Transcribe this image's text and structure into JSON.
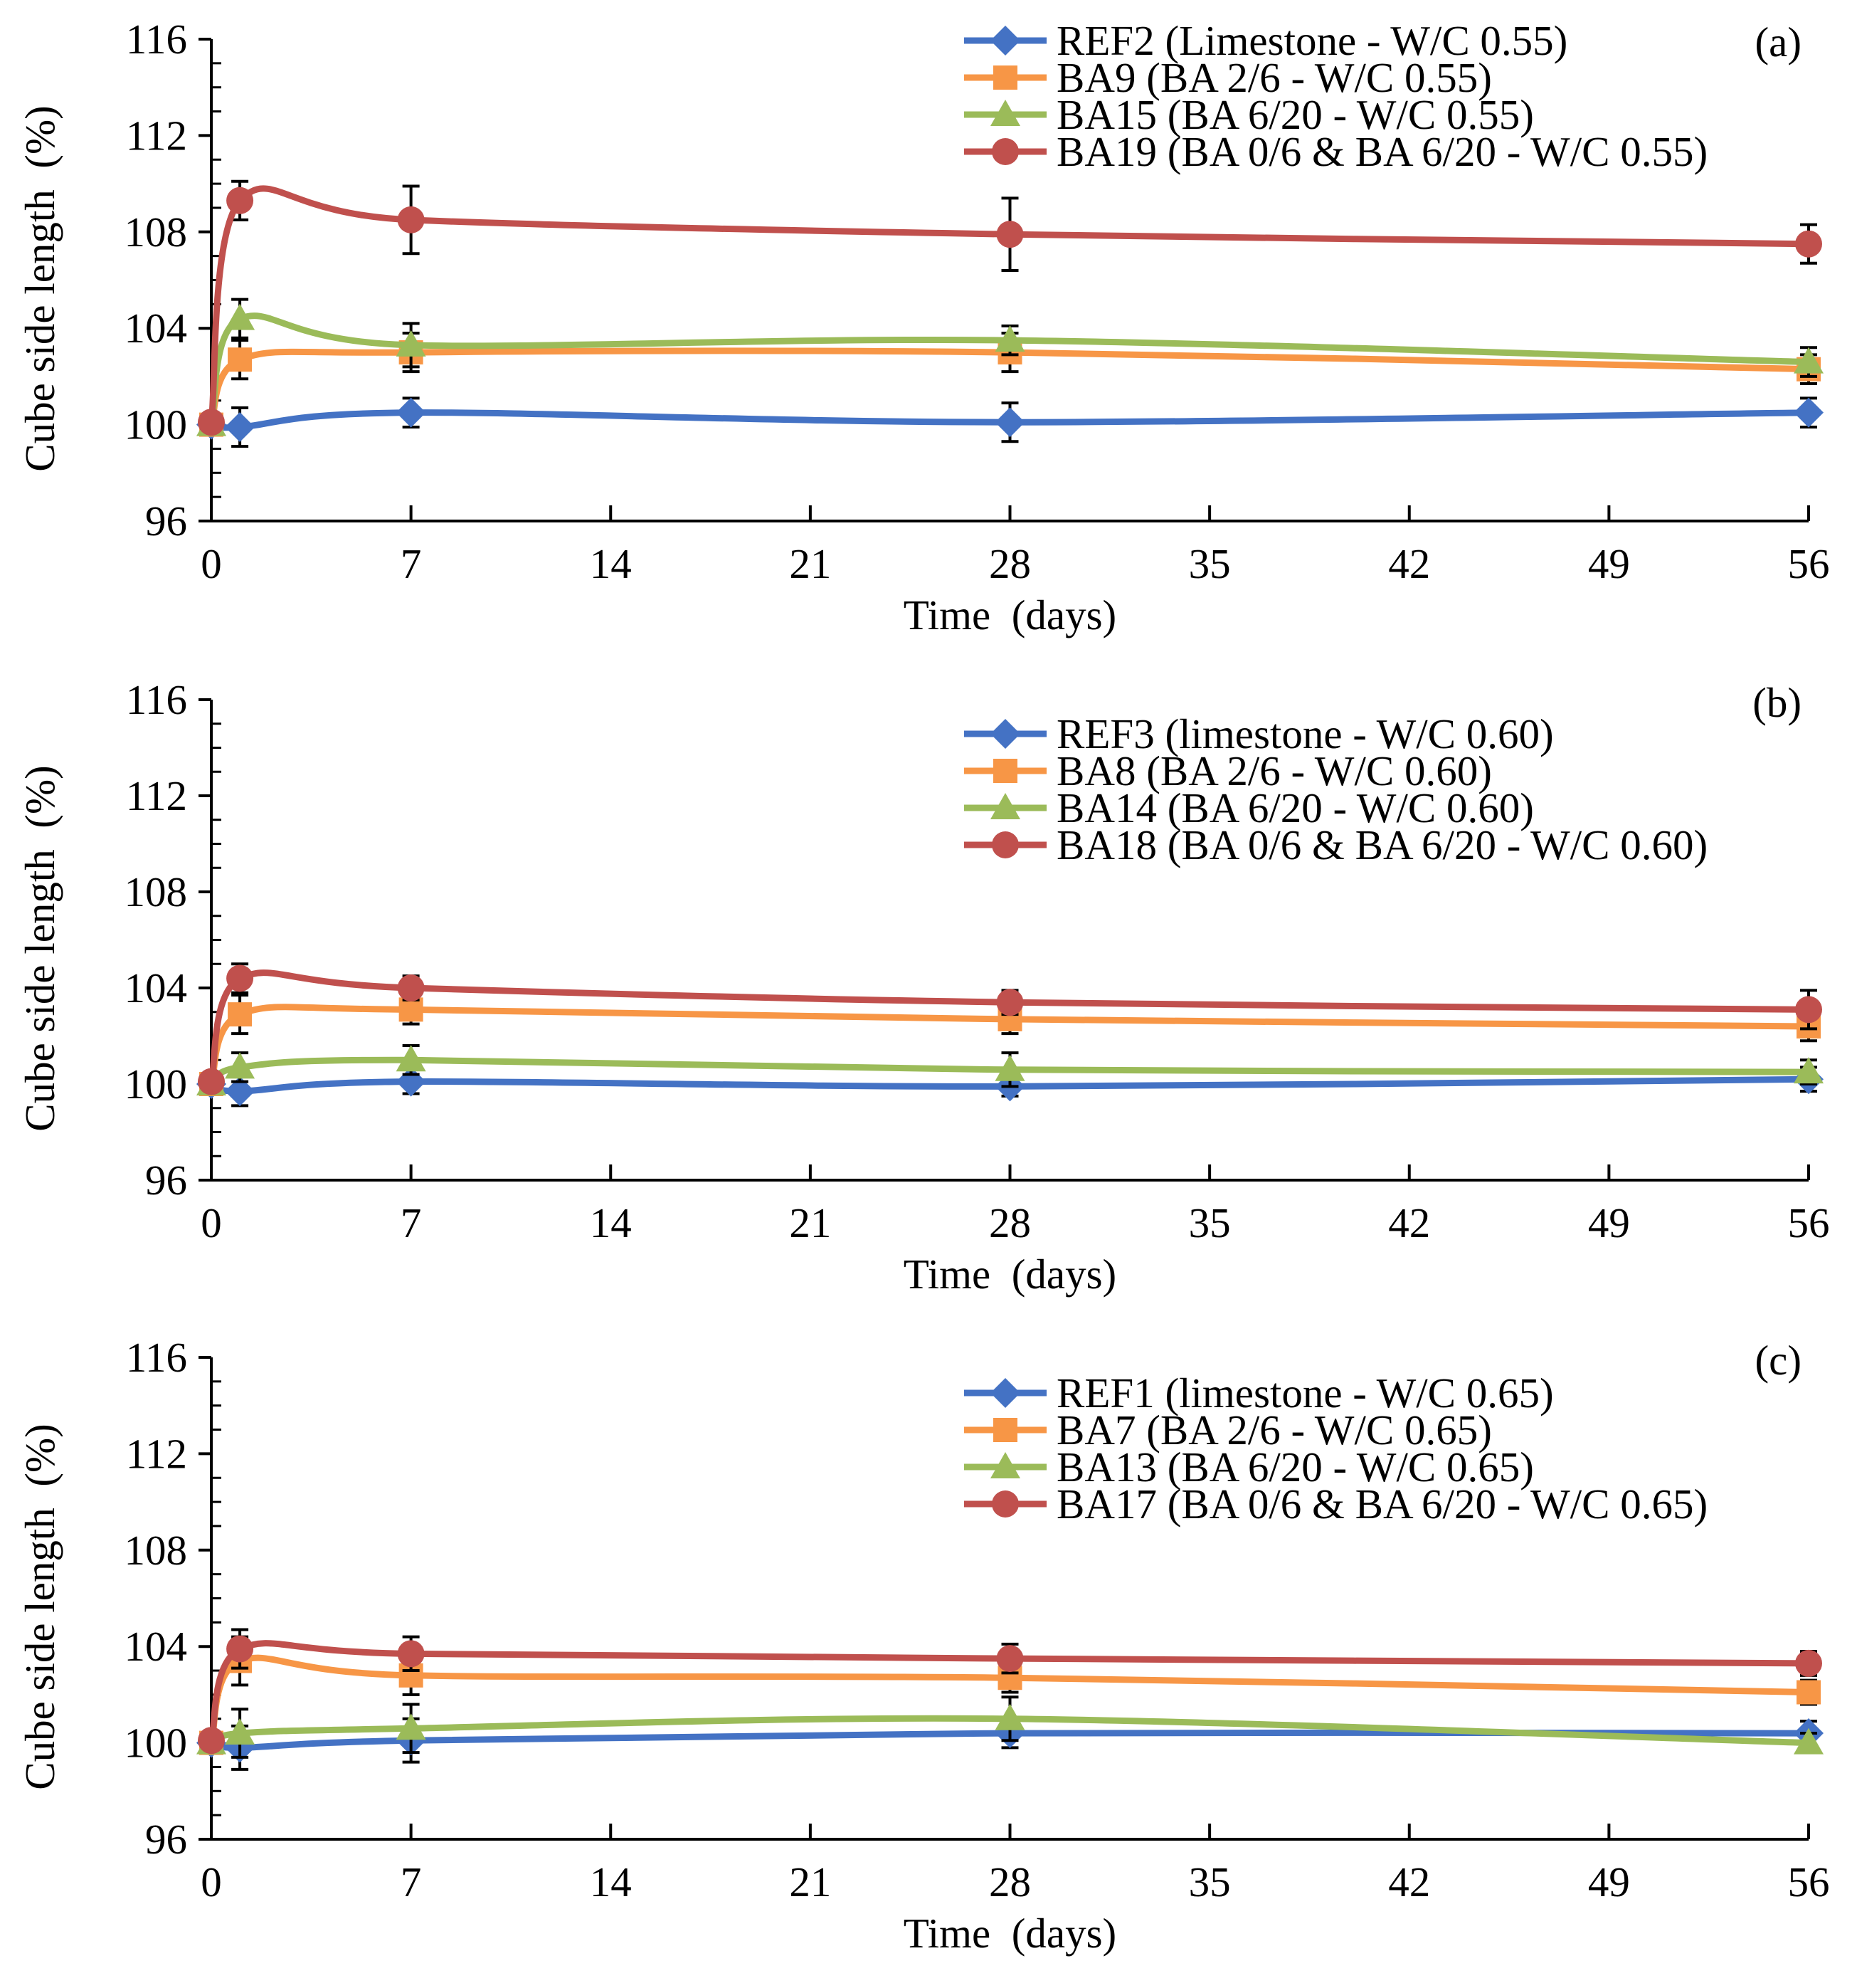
{
  "chart_data": [
    {
      "type": "line",
      "panel_label": "(a)",
      "xlabel": "Time  (days)",
      "ylabel": "Cube side length  (%)",
      "xlim": [
        0,
        56
      ],
      "ylim": [
        96,
        116
      ],
      "xticks": [
        "0",
        "7",
        "14",
        "21",
        "28",
        "35",
        "42",
        "49",
        "56"
      ],
      "yticks": [
        "96",
        "100",
        "104",
        "108",
        "112",
        "116"
      ],
      "legend_position": "top-right",
      "series": [
        {
          "name": "REF2 (Limestone - W/C 0.55)",
          "color": "#4472C4",
          "marker": "diamond",
          "x": [
            0,
            1,
            7,
            28,
            56
          ],
          "y": [
            100.0,
            99.9,
            100.5,
            100.1,
            100.5
          ],
          "err": [
            0,
            0.8,
            0.6,
            0.8,
            0.6
          ]
        },
        {
          "name": "BA9 (BA 2/6 - W/C 0.55)",
          "color": "#F79646",
          "marker": "square",
          "x": [
            0,
            1,
            7,
            28,
            56
          ],
          "y": [
            100.0,
            102.7,
            103.0,
            103.0,
            102.3
          ],
          "err": [
            0,
            0.8,
            0.8,
            0.8,
            0.6
          ]
        },
        {
          "name": "BA15 (BA 6/20 - W/C 0.55)",
          "color": "#9BBB59",
          "marker": "triangle",
          "x": [
            0,
            1,
            7,
            28,
            56
          ],
          "y": [
            100.0,
            104.4,
            103.3,
            103.5,
            102.6
          ],
          "err": [
            0,
            0.8,
            0.9,
            0.6,
            0.6
          ]
        },
        {
          "name": "BA19 (BA 0/6 & BA 6/20 - W/C 0.55)",
          "color": "#C0504D",
          "marker": "circle",
          "x": [
            0,
            1,
            7,
            28,
            56
          ],
          "y": [
            100.1,
            109.3,
            108.5,
            107.9,
            107.5
          ],
          "err": [
            0,
            0.8,
            1.4,
            1.5,
            0.8
          ]
        }
      ]
    },
    {
      "type": "line",
      "panel_label": "(b)",
      "xlabel": "Time  (days)",
      "ylabel": "Cube side length  (%)",
      "xlim": [
        0,
        56
      ],
      "ylim": [
        96,
        116
      ],
      "xticks": [
        "0",
        "7",
        "14",
        "21",
        "28",
        "35",
        "42",
        "49",
        "56"
      ],
      "yticks": [
        "96",
        "100",
        "104",
        "108",
        "112",
        "116"
      ],
      "legend_position": "top-right",
      "series": [
        {
          "name": "REF3 (limestone - W/C 0.60)",
          "color": "#4472C4",
          "marker": "diamond",
          "x": [
            0,
            1,
            7,
            28,
            56
          ],
          "y": [
            100.0,
            99.7,
            100.1,
            99.9,
            100.2
          ],
          "err": [
            0,
            0.6,
            0.5,
            0.4,
            0.5
          ]
        },
        {
          "name": "BA8 (BA 2/6 - W/C 0.60)",
          "color": "#F79646",
          "marker": "square",
          "x": [
            0,
            1,
            7,
            28,
            56
          ],
          "y": [
            100.0,
            102.9,
            103.1,
            102.7,
            102.4
          ],
          "err": [
            0,
            0.8,
            0.6,
            0.6,
            0.6
          ]
        },
        {
          "name": "BA14 (BA 6/20 - W/C 0.60)",
          "color": "#9BBB59",
          "marker": "triangle",
          "x": [
            0,
            1,
            7,
            28,
            56
          ],
          "y": [
            100.0,
            100.7,
            101.0,
            100.6,
            100.5
          ],
          "err": [
            0,
            0.6,
            0.6,
            0.7,
            0.5
          ]
        },
        {
          "name": "BA18 (BA 0/6 & BA 6/20 - W/C 0.60)",
          "color": "#C0504D",
          "marker": "circle",
          "x": [
            0,
            1,
            7,
            28,
            56
          ],
          "y": [
            100.1,
            104.4,
            104.0,
            103.4,
            103.1
          ],
          "err": [
            0,
            0.6,
            0.5,
            0.5,
            0.8
          ]
        }
      ]
    },
    {
      "type": "line",
      "panel_label": "(c)",
      "xlabel": "Time  (days)",
      "ylabel": "Cube side length  (%)",
      "xlim": [
        0,
        56
      ],
      "ylim": [
        96,
        116
      ],
      "xticks": [
        "0",
        "7",
        "14",
        "21",
        "28",
        "35",
        "42",
        "49",
        "56"
      ],
      "yticks": [
        "96",
        "100",
        "104",
        "108",
        "112",
        "116"
      ],
      "legend_position": "top-right",
      "series": [
        {
          "name": "REF1 (limestone - W/C 0.65)",
          "color": "#4472C4",
          "marker": "diamond",
          "x": [
            0,
            1,
            7,
            28,
            56
          ],
          "y": [
            100.0,
            99.8,
            100.1,
            100.4,
            100.4
          ],
          "err": [
            0,
            0.9,
            0.9,
            0.6,
            0.5
          ]
        },
        {
          "name": "BA7 (BA 2/6 - W/C 0.65)",
          "color": "#F79646",
          "marker": "square",
          "x": [
            0,
            1,
            7,
            28,
            56
          ],
          "y": [
            100.0,
            103.4,
            102.8,
            102.7,
            102.1
          ],
          "err": [
            0,
            1.0,
            0.8,
            0.6,
            0.5
          ]
        },
        {
          "name": "BA13 (BA 6/20 - W/C 0.65)",
          "color": "#9BBB59",
          "marker": "triangle",
          "x": [
            0,
            1,
            7,
            28,
            56
          ],
          "y": [
            100.0,
            100.4,
            100.6,
            101.0,
            100.0
          ],
          "err": [
            0,
            1.0,
            1.0,
            0.9,
            0.4
          ]
        },
        {
          "name": "BA17 (BA 0/6 & BA 6/20 - W/C 0.65)",
          "color": "#C0504D",
          "marker": "circle",
          "x": [
            0,
            1,
            7,
            28,
            56
          ],
          "y": [
            100.1,
            103.9,
            103.7,
            103.5,
            103.3
          ],
          "err": [
            0,
            0.8,
            0.7,
            0.6,
            0.5
          ]
        }
      ]
    }
  ]
}
